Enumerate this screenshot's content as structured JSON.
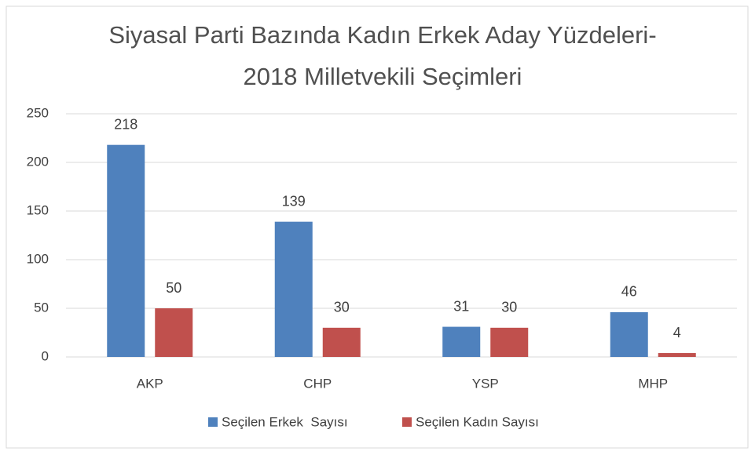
{
  "chart_data": {
    "type": "bar",
    "title": [
      "Siyasal Parti Bazında Kadın Erkek Aday Yüzdeleri-",
      "2018 Milletvekili Seçimleri"
    ],
    "categories": [
      "AKP",
      "CHP",
      "YSP",
      "MHP"
    ],
    "series": [
      {
        "name": "Seçilen Erkek  Sayısı",
        "color": "#4f81bd",
        "values": [
          218,
          139,
          31,
          46
        ]
      },
      {
        "name": "Seçilen Kadın Sayısı",
        "color": "#c0504d",
        "values": [
          50,
          30,
          30,
          4
        ]
      }
    ],
    "ylim": [
      0,
      250
    ],
    "yticks": [
      0,
      50,
      100,
      150,
      200,
      250
    ],
    "grid": true,
    "legend": "bottom"
  }
}
